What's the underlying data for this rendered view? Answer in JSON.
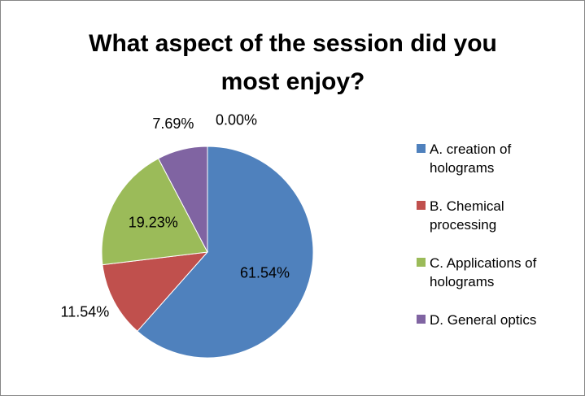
{
  "chart_data": {
    "type": "pie",
    "title": "What aspect of the session did you most enjoy?",
    "categories": [
      "A. creation of holograms",
      "B. Chemical processing",
      "C. Applications of holograms",
      "D. General optics",
      null
    ],
    "values": [
      61.54,
      11.54,
      19.23,
      7.69,
      0.0
    ],
    "value_labels": [
      "61.54%",
      "11.54%",
      "19.23%",
      "7.69%",
      "0.00%"
    ],
    "colors": [
      "#4f81bd",
      "#c0504d",
      "#9bbb59",
      "#8064a2"
    ],
    "legend": "right"
  }
}
